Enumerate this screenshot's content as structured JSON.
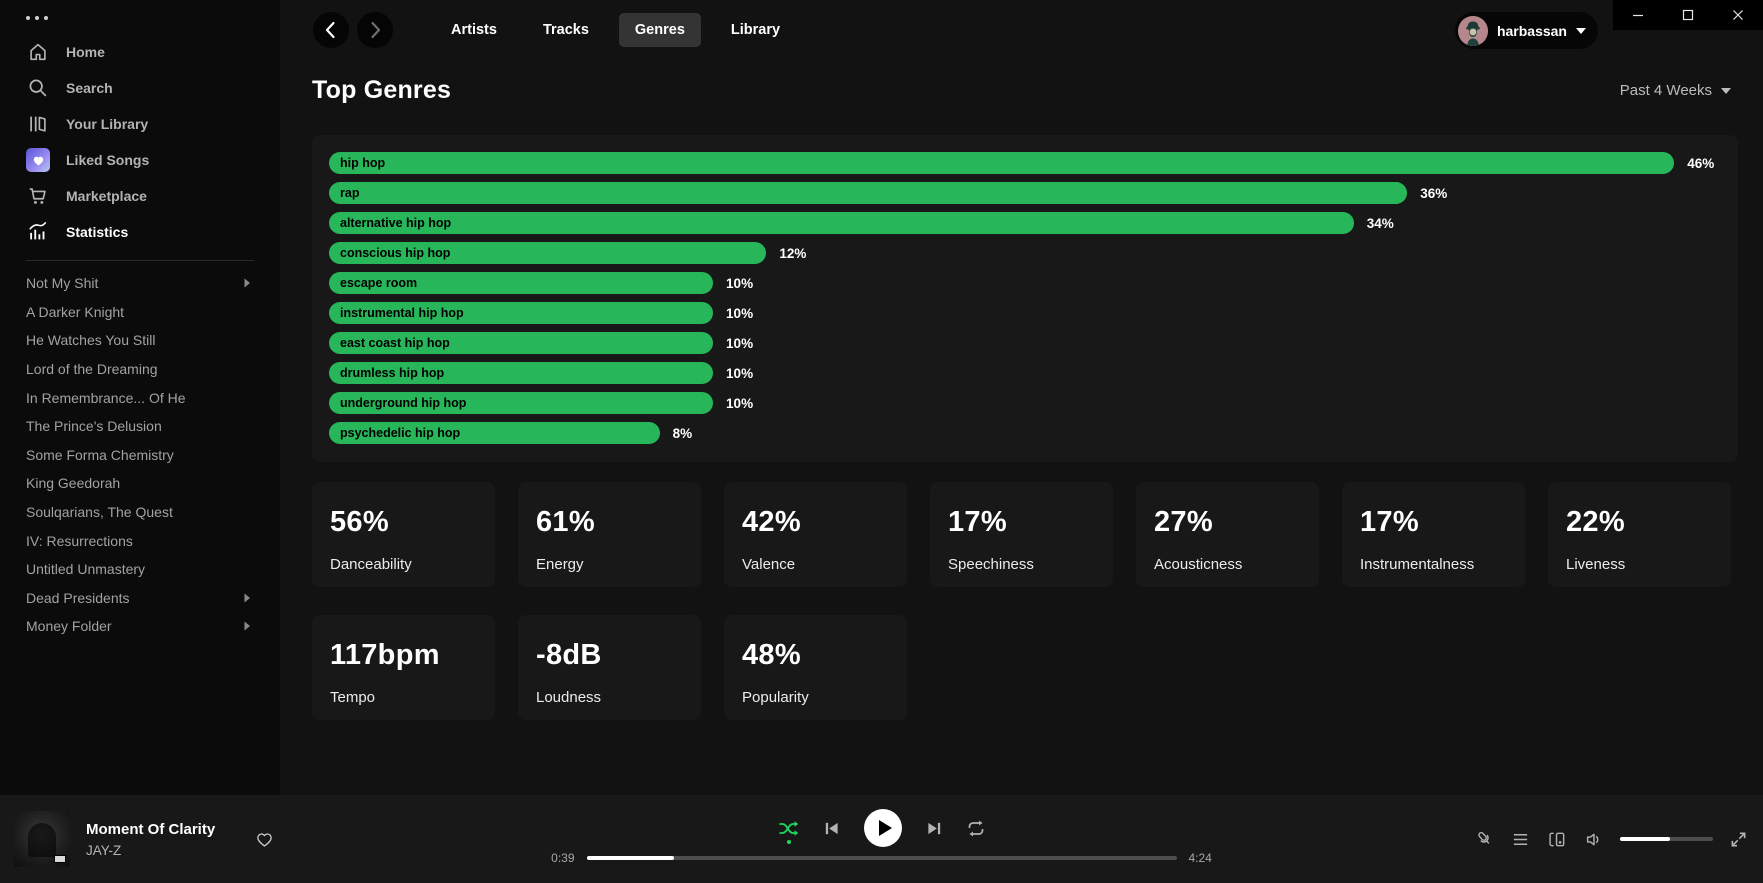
{
  "window": {
    "controls": [
      "minimize",
      "maximize",
      "close"
    ]
  },
  "sidebar": {
    "items": [
      {
        "label": "Home",
        "icon": "home-icon",
        "active": false
      },
      {
        "label": "Search",
        "icon": "search-icon",
        "active": false
      },
      {
        "label": "Your Library",
        "icon": "library-icon",
        "active": false
      },
      {
        "label": "Liked Songs",
        "icon": "liked-songs-icon",
        "active": false
      },
      {
        "label": "Marketplace",
        "icon": "cart-icon",
        "active": false
      },
      {
        "label": "Statistics",
        "icon": "stats-icon",
        "active": true
      }
    ],
    "playlists": [
      {
        "label": "Not My Shit",
        "has_submenu": true
      },
      {
        "label": "A Darker Knight",
        "has_submenu": false
      },
      {
        "label": "He Watches You Still",
        "has_submenu": false
      },
      {
        "label": "Lord of the Dreaming",
        "has_submenu": false
      },
      {
        "label": "In Remembrance... Of He",
        "has_submenu": false
      },
      {
        "label": "The Prince's Delusion",
        "has_submenu": false
      },
      {
        "label": "Some Forma Chemistry",
        "has_submenu": false
      },
      {
        "label": "King Geedorah",
        "has_submenu": false
      },
      {
        "label": "Soulqarians, The Quest",
        "has_submenu": false
      },
      {
        "label": "IV: Resurrections",
        "has_submenu": false
      },
      {
        "label": "Untitled Unmastery",
        "has_submenu": false
      },
      {
        "label": "Dead Presidents",
        "has_submenu": true
      },
      {
        "label": "Money Folder",
        "has_submenu": true
      }
    ]
  },
  "topnav": {
    "tabs": [
      {
        "label": "Artists",
        "active": false
      },
      {
        "label": "Tracks",
        "active": false
      },
      {
        "label": "Genres",
        "active": true
      },
      {
        "label": "Library",
        "active": false
      }
    ],
    "user": {
      "name": "harbassan"
    }
  },
  "page": {
    "title": "Top Genres",
    "time_range": "Past 4 Weeks"
  },
  "chart_data": {
    "type": "bar",
    "orientation": "horizontal",
    "title": "Top Genres",
    "categories": [
      "hip hop",
      "rap",
      "alternative hip hop",
      "conscious hip hop",
      "escape room",
      "instrumental hip hop",
      "east coast hip hop",
      "drumless hip hop",
      "underground hip hop",
      "psychedelic hip hop"
    ],
    "values": [
      46,
      36,
      34,
      12,
      10,
      10,
      10,
      10,
      10,
      8
    ],
    "value_suffix": "%",
    "bar_color": "#27b65a",
    "label_color": "#000000",
    "value_label_color": "#ffffff",
    "grid": false,
    "legend": false
  },
  "stats": {
    "cards": [
      {
        "value": "56%",
        "label": "Danceability"
      },
      {
        "value": "61%",
        "label": "Energy"
      },
      {
        "value": "42%",
        "label": "Valence"
      },
      {
        "value": "17%",
        "label": "Speechiness"
      },
      {
        "value": "27%",
        "label": "Acousticness"
      },
      {
        "value": "17%",
        "label": "Instrumentalness"
      },
      {
        "value": "22%",
        "label": "Liveness"
      },
      {
        "value": "117bpm",
        "label": "Tempo"
      },
      {
        "value": "-8dB",
        "label": "Loudness"
      },
      {
        "value": "48%",
        "label": "Popularity"
      }
    ]
  },
  "player": {
    "track": {
      "title": "Moment Of Clarity",
      "artist": "JAY-Z"
    },
    "elapsed": "0:39",
    "duration": "4:24",
    "progress_pct": 14.8,
    "shuffle_active": true,
    "volume_pct": 54
  },
  "colors": {
    "accent_green": "#27b65a",
    "shuffle_green": "#1ed760",
    "panel_bg": "#181818",
    "main_bg": "#121212",
    "sidebar_bg": "#0b0b0b"
  }
}
